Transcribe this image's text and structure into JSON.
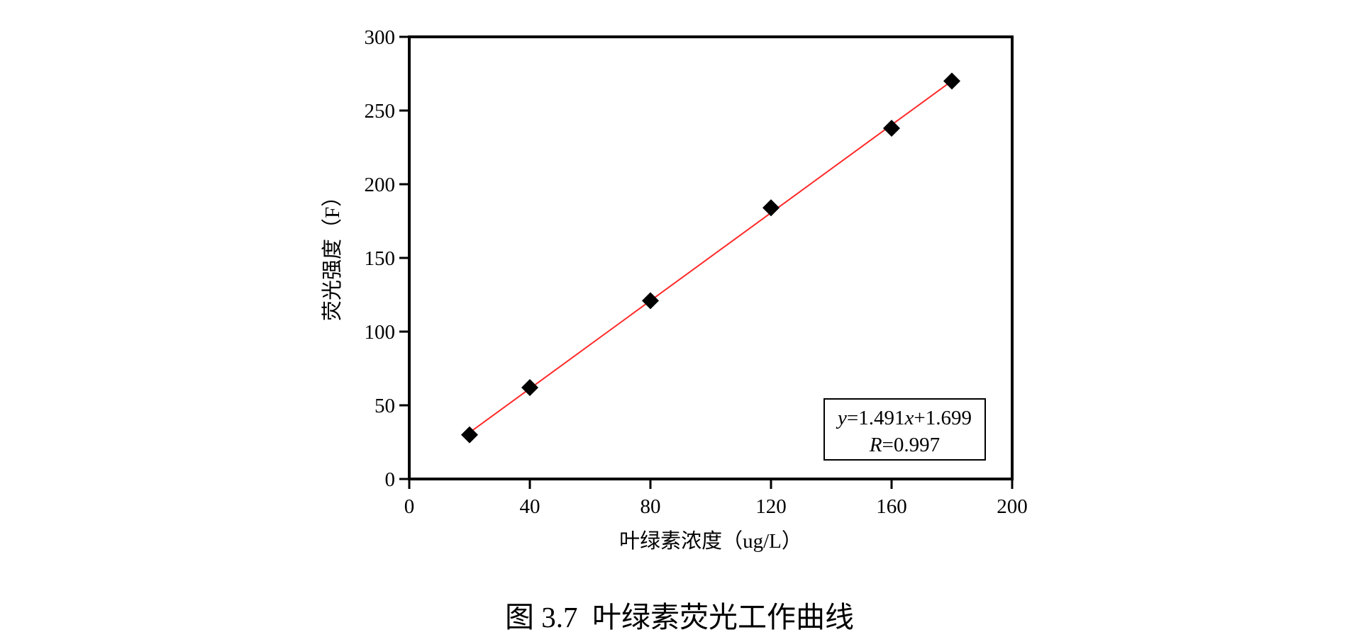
{
  "caption": "图 3.7  叶绿素荧光工作曲线",
  "chart_data": {
    "type": "scatter",
    "title": "",
    "xlabel": "叶绿素浓度（ug/L）",
    "ylabel": "荧光强度（F）",
    "xlim": [
      0,
      200
    ],
    "ylim": [
      0,
      300
    ],
    "xticks": [
      0,
      40,
      80,
      120,
      160,
      200
    ],
    "yticks": [
      0,
      50,
      100,
      150,
      200,
      250,
      300
    ],
    "grid": false,
    "marker": "diamond",
    "marker_color": "#000000",
    "points": [
      {
        "x": 20,
        "y": 30
      },
      {
        "x": 40,
        "y": 62
      },
      {
        "x": 80,
        "y": 121
      },
      {
        "x": 120,
        "y": 184
      },
      {
        "x": 160,
        "y": 238
      },
      {
        "x": 180,
        "y": 270
      }
    ],
    "fit_line": {
      "slope": 1.491,
      "intercept": 1.699,
      "x_range": [
        20,
        180
      ],
      "color": "#ff2a2a"
    },
    "annotation": {
      "equation_parts": {
        "y": "y",
        "eq_mid": "=1.491",
        "x": "x",
        "eq_end": "+1.699"
      },
      "r_parts": {
        "R": "R",
        "value": "=0.997"
      },
      "placement": "bottom-right"
    }
  }
}
